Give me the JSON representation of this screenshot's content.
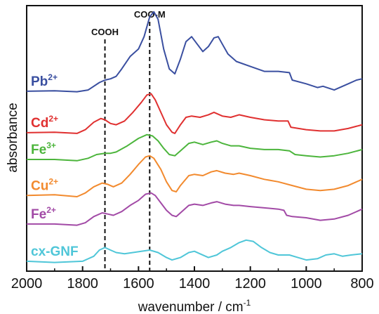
{
  "chart_data": {
    "type": "line",
    "xlabel": "wavenumber / cm",
    "xlabel_sup": "-1",
    "ylabel": "absorbance",
    "xlim": [
      2000,
      800
    ],
    "x_reversed": true,
    "x_ticks": [
      2000,
      1800,
      1600,
      1400,
      1200,
      1000,
      800
    ],
    "y_ticks": false,
    "grid": false,
    "annotations": [
      {
        "text": "COOH",
        "x": 1720
      },
      {
        "text": "COO-M",
        "x": 1560
      }
    ],
    "series": [
      {
        "name": "Pb",
        "name_sup": "2+",
        "color": "#3a4fa0",
        "offset": 6.8,
        "points": [
          [
            2000,
            0.1
          ],
          [
            1900,
            0.12
          ],
          [
            1820,
            0.08
          ],
          [
            1780,
            0.15
          ],
          [
            1740,
            0.45
          ],
          [
            1720,
            0.55
          ],
          [
            1700,
            0.6
          ],
          [
            1680,
            0.7
          ],
          [
            1660,
            1.0
          ],
          [
            1630,
            1.5
          ],
          [
            1600,
            1.8
          ],
          [
            1580,
            2.3
          ],
          [
            1560,
            3.1
          ],
          [
            1545,
            3.3
          ],
          [
            1530,
            3.0
          ],
          [
            1510,
            1.8
          ],
          [
            1490,
            1.0
          ],
          [
            1470,
            0.8
          ],
          [
            1450,
            1.4
          ],
          [
            1430,
            2.1
          ],
          [
            1410,
            2.3
          ],
          [
            1390,
            2.0
          ],
          [
            1370,
            1.7
          ],
          [
            1350,
            1.9
          ],
          [
            1330,
            2.25
          ],
          [
            1315,
            2.3
          ],
          [
            1300,
            2.0
          ],
          [
            1280,
            1.6
          ],
          [
            1250,
            1.3
          ],
          [
            1200,
            1.1
          ],
          [
            1150,
            0.9
          ],
          [
            1100,
            0.9
          ],
          [
            1060,
            0.85
          ],
          [
            1050,
            0.55
          ],
          [
            1000,
            0.4
          ],
          [
            960,
            0.25
          ],
          [
            940,
            0.3
          ],
          [
            900,
            0.15
          ],
          [
            880,
            0.25
          ],
          [
            850,
            0.4
          ],
          [
            820,
            0.55
          ],
          [
            800,
            0.6
          ]
        ]
      },
      {
        "name": "Cd",
        "name_sup": "2+",
        "color": "#e03030",
        "offset": 5.15,
        "points": [
          [
            2000,
            0.08
          ],
          [
            1900,
            0.1
          ],
          [
            1820,
            0.05
          ],
          [
            1790,
            0.2
          ],
          [
            1760,
            0.5
          ],
          [
            1735,
            0.65
          ],
          [
            1720,
            0.6
          ],
          [
            1700,
            0.45
          ],
          [
            1680,
            0.4
          ],
          [
            1650,
            0.55
          ],
          [
            1620,
            0.9
          ],
          [
            1590,
            1.3
          ],
          [
            1570,
            1.6
          ],
          [
            1555,
            1.65
          ],
          [
            1540,
            1.4
          ],
          [
            1520,
            0.9
          ],
          [
            1500,
            0.4
          ],
          [
            1480,
            0.1
          ],
          [
            1470,
            0.05
          ],
          [
            1450,
            0.4
          ],
          [
            1430,
            0.7
          ],
          [
            1410,
            0.75
          ],
          [
            1380,
            0.7
          ],
          [
            1350,
            0.8
          ],
          [
            1330,
            0.9
          ],
          [
            1300,
            0.75
          ],
          [
            1270,
            0.7
          ],
          [
            1240,
            0.8
          ],
          [
            1200,
            0.7
          ],
          [
            1150,
            0.6
          ],
          [
            1100,
            0.55
          ],
          [
            1065,
            0.55
          ],
          [
            1055,
            0.3
          ],
          [
            1000,
            0.2
          ],
          [
            950,
            0.15
          ],
          [
            900,
            0.15
          ],
          [
            850,
            0.25
          ],
          [
            800,
            0.4
          ]
        ]
      },
      {
        "name": "Fe",
        "name_sup": "3+",
        "color": "#4cb53c",
        "offset": 4.1,
        "points": [
          [
            2000,
            0.05
          ],
          [
            1900,
            0.05
          ],
          [
            1820,
            0.0
          ],
          [
            1780,
            0.1
          ],
          [
            1750,
            0.25
          ],
          [
            1720,
            0.3
          ],
          [
            1700,
            0.3
          ],
          [
            1680,
            0.35
          ],
          [
            1640,
            0.6
          ],
          [
            1600,
            0.9
          ],
          [
            1570,
            1.05
          ],
          [
            1550,
            1.0
          ],
          [
            1530,
            0.8
          ],
          [
            1510,
            0.5
          ],
          [
            1490,
            0.25
          ],
          [
            1470,
            0.2
          ],
          [
            1450,
            0.4
          ],
          [
            1420,
            0.7
          ],
          [
            1400,
            0.75
          ],
          [
            1370,
            0.65
          ],
          [
            1340,
            0.75
          ],
          [
            1320,
            0.8
          ],
          [
            1300,
            0.7
          ],
          [
            1270,
            0.6
          ],
          [
            1240,
            0.6
          ],
          [
            1200,
            0.5
          ],
          [
            1150,
            0.45
          ],
          [
            1100,
            0.45
          ],
          [
            1060,
            0.4
          ],
          [
            1040,
            0.25
          ],
          [
            1000,
            0.2
          ],
          [
            950,
            0.15
          ],
          [
            900,
            0.2
          ],
          [
            850,
            0.3
          ],
          [
            800,
            0.45
          ]
        ]
      },
      {
        "name": "Cu",
        "name_sup": "2+",
        "color": "#f28a2e",
        "offset": 2.65,
        "points": [
          [
            2000,
            0.05
          ],
          [
            1900,
            0.08
          ],
          [
            1820,
            0.0
          ],
          [
            1790,
            0.15
          ],
          [
            1760,
            0.4
          ],
          [
            1730,
            0.55
          ],
          [
            1710,
            0.5
          ],
          [
            1690,
            0.4
          ],
          [
            1660,
            0.55
          ],
          [
            1630,
            0.9
          ],
          [
            1600,
            1.3
          ],
          [
            1575,
            1.6
          ],
          [
            1560,
            1.65
          ],
          [
            1545,
            1.55
          ],
          [
            1520,
            1.1
          ],
          [
            1500,
            0.6
          ],
          [
            1480,
            0.25
          ],
          [
            1465,
            0.2
          ],
          [
            1450,
            0.45
          ],
          [
            1420,
            0.85
          ],
          [
            1400,
            0.9
          ],
          [
            1370,
            0.85
          ],
          [
            1340,
            1.0
          ],
          [
            1320,
            1.05
          ],
          [
            1290,
            0.95
          ],
          [
            1260,
            0.9
          ],
          [
            1240,
            0.95
          ],
          [
            1200,
            0.85
          ],
          [
            1150,
            0.7
          ],
          [
            1100,
            0.6
          ],
          [
            1050,
            0.45
          ],
          [
            1000,
            0.3
          ],
          [
            950,
            0.25
          ],
          [
            900,
            0.3
          ],
          [
            850,
            0.45
          ],
          [
            800,
            0.7
          ]
        ]
      },
      {
        "name": "Fe",
        "name_sup": "2+",
        "color": "#a24aa6",
        "offset": 1.5,
        "points": [
          [
            2000,
            0.05
          ],
          [
            1900,
            0.05
          ],
          [
            1820,
            0.0
          ],
          [
            1790,
            0.1
          ],
          [
            1760,
            0.35
          ],
          [
            1730,
            0.5
          ],
          [
            1710,
            0.45
          ],
          [
            1690,
            0.4
          ],
          [
            1660,
            0.55
          ],
          [
            1630,
            0.8
          ],
          [
            1600,
            1.0
          ],
          [
            1575,
            1.25
          ],
          [
            1555,
            1.3
          ],
          [
            1540,
            1.2
          ],
          [
            1520,
            0.9
          ],
          [
            1500,
            0.6
          ],
          [
            1480,
            0.4
          ],
          [
            1465,
            0.35
          ],
          [
            1450,
            0.5
          ],
          [
            1420,
            0.8
          ],
          [
            1400,
            0.85
          ],
          [
            1370,
            0.8
          ],
          [
            1340,
            0.9
          ],
          [
            1320,
            0.95
          ],
          [
            1290,
            0.85
          ],
          [
            1260,
            0.8
          ],
          [
            1240,
            0.8
          ],
          [
            1200,
            0.75
          ],
          [
            1150,
            0.7
          ],
          [
            1100,
            0.65
          ],
          [
            1080,
            0.6
          ],
          [
            1070,
            0.4
          ],
          [
            1050,
            0.35
          ],
          [
            1000,
            0.3
          ],
          [
            950,
            0.2
          ],
          [
            900,
            0.25
          ],
          [
            850,
            0.4
          ],
          [
            800,
            0.65
          ]
        ]
      },
      {
        "name": "cx-GNF",
        "name_sup": "",
        "color": "#4fc6d8",
        "offset": 0.0,
        "points": [
          [
            2000,
            0.05
          ],
          [
            1900,
            0.0
          ],
          [
            1800,
            0.05
          ],
          [
            1760,
            0.25
          ],
          [
            1740,
            0.5
          ],
          [
            1720,
            0.6
          ],
          [
            1700,
            0.5
          ],
          [
            1680,
            0.4
          ],
          [
            1650,
            0.35
          ],
          [
            1620,
            0.4
          ],
          [
            1590,
            0.45
          ],
          [
            1560,
            0.5
          ],
          [
            1530,
            0.4
          ],
          [
            1500,
            0.2
          ],
          [
            1480,
            0.1
          ],
          [
            1450,
            0.2
          ],
          [
            1420,
            0.4
          ],
          [
            1400,
            0.45
          ],
          [
            1380,
            0.35
          ],
          [
            1350,
            0.2
          ],
          [
            1320,
            0.3
          ],
          [
            1300,
            0.45
          ],
          [
            1270,
            0.6
          ],
          [
            1240,
            0.8
          ],
          [
            1215,
            0.9
          ],
          [
            1190,
            0.85
          ],
          [
            1160,
            0.6
          ],
          [
            1130,
            0.4
          ],
          [
            1100,
            0.3
          ],
          [
            1060,
            0.3
          ],
          [
            1030,
            0.2
          ],
          [
            1000,
            0.1
          ],
          [
            960,
            0.15
          ],
          [
            930,
            0.3
          ],
          [
            900,
            0.35
          ],
          [
            870,
            0.25
          ],
          [
            840,
            0.3
          ],
          [
            800,
            0.35
          ]
        ]
      }
    ]
  }
}
